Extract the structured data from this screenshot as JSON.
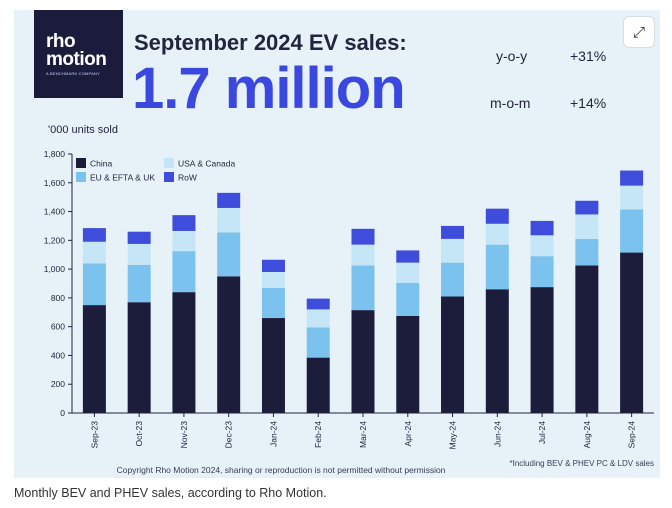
{
  "card": {
    "logo_line1": "rho",
    "logo_line2": "motion",
    "logo_tag": "A BENCHMARK COMPANY",
    "headline": "September 2024 EV sales:",
    "big_number": "1.7 million",
    "stats": [
      {
        "label": "y-o-y",
        "value": "+31%"
      },
      {
        "label": "m-o-m",
        "value": "+14%"
      }
    ],
    "units_label": "'000 units sold",
    "copyright": "Copyright Rho Motion 2024, sharing or reproduction is not permitted without permission",
    "footnote": "*Including BEV & PHEV PC & LDV sales",
    "expand_icon": "expand-icon"
  },
  "caption": "Monthly BEV and PHEV sales, according to Rho Motion.",
  "colors": {
    "china": "#1c1d3b",
    "eu": "#7cc2ee",
    "usa": "#c5e6f6",
    "row": "#3f4ddd",
    "accent": "#3a48e0"
  },
  "chart_data": {
    "type": "bar",
    "stacked": true,
    "categories": [
      "Sep-23",
      "Oct-23",
      "Nov-23",
      "Dec-23",
      "Jan-24",
      "Feb-24",
      "Mar-24",
      "Apr-24",
      "May-24",
      "Jun-24",
      "Jul-24",
      "Aug-24",
      "Sep-24"
    ],
    "series": [
      {
        "name": "China",
        "color": "#1c1d3b",
        "values": [
          750,
          770,
          840,
          950,
          660,
          385,
          715,
          675,
          810,
          860,
          875,
          1025,
          1115
        ]
      },
      {
        "name": "EU & EFTA & UK",
        "color": "#7cc2ee",
        "values": [
          290,
          260,
          285,
          305,
          210,
          210,
          310,
          230,
          235,
          310,
          215,
          185,
          300
        ]
      },
      {
        "name": "USA & Canada",
        "color": "#c5e6f6",
        "values": [
          150,
          145,
          140,
          170,
          110,
          125,
          145,
          140,
          165,
          145,
          145,
          170,
          165
        ]
      },
      {
        "name": "RoW",
        "color": "#3f4ddd",
        "values": [
          95,
          85,
          110,
          105,
          85,
          75,
          110,
          85,
          90,
          105,
          100,
          95,
          105
        ]
      }
    ],
    "legend_order": [
      "China",
      "USA & Canada",
      "EU & EFTA & UK",
      "RoW"
    ],
    "ylim": [
      0,
      1800
    ],
    "yticks": [
      "0",
      "200",
      "400",
      "600",
      "800",
      "1,000",
      "1,200",
      "1,400",
      "1,600",
      "1,800"
    ],
    "ylabel": "'000 units sold",
    "xlabel": "",
    "title": "September 2024 EV sales:",
    "legend_placement": "top-left",
    "grid": false
  }
}
